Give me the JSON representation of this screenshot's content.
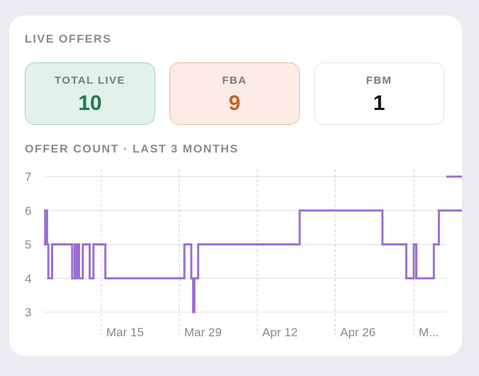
{
  "panel": {
    "title": "LIVE OFFERS",
    "stats": [
      {
        "label": "TOTAL LIVE",
        "value": "10",
        "color": "#1f7a55"
      },
      {
        "label": "FBA",
        "value": "9",
        "color": "#c0662a"
      },
      {
        "label": "FBM",
        "value": "1",
        "color": "#111111"
      }
    ],
    "chart_title": "OFFER COUNT · LAST 3 MONTHS"
  },
  "chart_data": {
    "type": "line",
    "title": "OFFER COUNT · LAST 3 MONTHS",
    "xlabel": "",
    "ylabel": "",
    "line_color": "#9b6fd1",
    "step": true,
    "x_tick_labels": [
      "Mar 15",
      "Mar 29",
      "Apr 12",
      "Apr 26",
      "M..."
    ],
    "y_ticks": [
      3,
      4,
      5,
      6,
      7
    ],
    "ylim": [
      3,
      7
    ],
    "xlim": [
      0,
      64.2
    ],
    "series": [
      {
        "points": [
          [
            0,
            5
          ],
          [
            0.2,
            6
          ],
          [
            0.5,
            5
          ],
          [
            0.7,
            4
          ],
          [
            1.3,
            5
          ],
          [
            4.5,
            4
          ],
          [
            4.9,
            5
          ],
          [
            5.1,
            4
          ],
          [
            5.4,
            5
          ],
          [
            5.6,
            4
          ],
          [
            6.2,
            5
          ],
          [
            7.3,
            4
          ],
          [
            7.9,
            5
          ],
          [
            9.8,
            4
          ],
          [
            22.4,
            5
          ],
          [
            23.5,
            4
          ],
          [
            23.8,
            3
          ],
          [
            24,
            4
          ],
          [
            24.6,
            5
          ],
          [
            40.8,
            6
          ],
          [
            54,
            5
          ],
          [
            57.8,
            4
          ],
          [
            59,
            5
          ],
          [
            59.4,
            4
          ],
          [
            62.2,
            5
          ],
          [
            63,
            6
          ],
          [
            69.8,
            7
          ]
        ]
      }
    ]
  }
}
